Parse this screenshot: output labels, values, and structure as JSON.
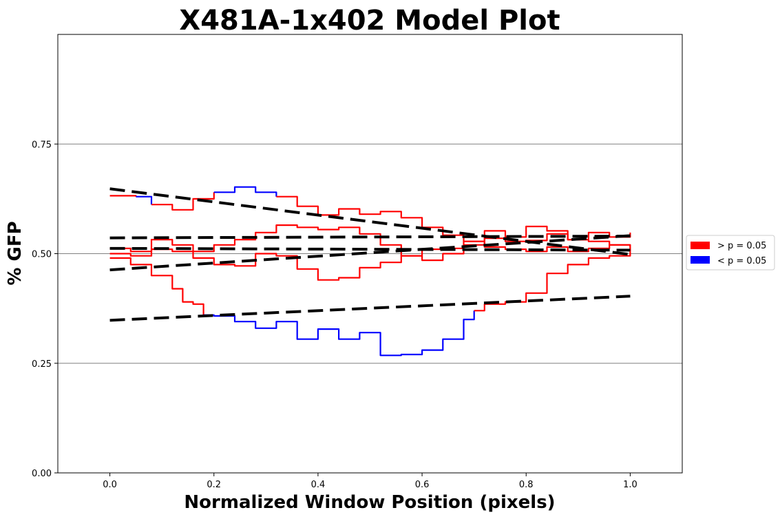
{
  "chart_data": {
    "type": "line",
    "title": "X481A-1x402 Model Plot",
    "xlabel": "Normalized Window Position (pixels)",
    "ylabel": "% GFP",
    "xlim": [
      -0.1,
      1.1
    ],
    "ylim": [
      0.0,
      1.0
    ],
    "xticks": [
      0.0,
      0.2,
      0.4,
      0.6,
      0.8,
      1.0
    ],
    "xtick_labels": [
      "0.0",
      "0.2",
      "0.4",
      "0.6",
      "0.8",
      "1.0"
    ],
    "yticks": [
      0.0,
      0.25,
      0.5,
      0.75
    ],
    "ytick_labels": [
      "0.00",
      "0.25",
      "0.50",
      "0.75"
    ],
    "horizontal_gridlines": [
      0.25,
      0.5,
      0.75
    ],
    "grid": "horizontal only",
    "legend": {
      "placement": "outside right",
      "entries": [
        {
          "label": "> p = 0.05",
          "color": "#ff0000"
        },
        {
          "label": "< p = 0.05",
          "color": "#0000ff"
        }
      ]
    },
    "colors": {
      "not_significant": "#ff0000",
      "significant": "#0000ff",
      "fit": "#000000",
      "grid": "#808080"
    },
    "series": [
      {
        "points": [
          [
            0.0,
            0.632
          ],
          [
            0.05,
            0.63
          ],
          [
            0.08,
            0.612
          ],
          [
            0.12,
            0.6
          ],
          [
            0.16,
            0.625
          ],
          [
            0.2,
            0.64
          ],
          [
            0.24,
            0.652
          ],
          [
            0.28,
            0.64
          ],
          [
            0.32,
            0.63
          ],
          [
            0.36,
            0.608
          ],
          [
            0.4,
            0.588
          ],
          [
            0.44,
            0.602
          ],
          [
            0.48,
            0.59
          ],
          [
            0.52,
            0.596
          ],
          [
            0.56,
            0.582
          ],
          [
            0.6,
            0.56
          ],
          [
            0.64,
            0.542
          ],
          [
            0.68,
            0.528
          ],
          [
            0.72,
            0.552
          ],
          [
            0.76,
            0.538
          ],
          [
            0.8,
            0.562
          ],
          [
            0.84,
            0.552
          ],
          [
            0.88,
            0.532
          ],
          [
            0.92,
            0.548
          ],
          [
            0.96,
            0.538
          ],
          [
            1.0,
            0.548
          ]
        ],
        "significant_x": [
          [
            0.06,
            0.07
          ],
          [
            0.2,
            0.33
          ]
        ],
        "fit": [
          0.648,
          0.498
        ]
      },
      {
        "points": [
          [
            0.0,
            0.512
          ],
          [
            0.04,
            0.505
          ],
          [
            0.08,
            0.532
          ],
          [
            0.12,
            0.52
          ],
          [
            0.16,
            0.505
          ],
          [
            0.2,
            0.52
          ],
          [
            0.24,
            0.532
          ],
          [
            0.28,
            0.548
          ],
          [
            0.32,
            0.565
          ],
          [
            0.36,
            0.56
          ],
          [
            0.4,
            0.555
          ],
          [
            0.44,
            0.56
          ],
          [
            0.48,
            0.545
          ],
          [
            0.52,
            0.52
          ],
          [
            0.56,
            0.495
          ],
          [
            0.6,
            0.485
          ],
          [
            0.64,
            0.5
          ],
          [
            0.68,
            0.52
          ],
          [
            0.72,
            0.535
          ],
          [
            0.76,
            0.528
          ],
          [
            0.8,
            0.53
          ],
          [
            0.84,
            0.545
          ],
          [
            0.88,
            0.532
          ],
          [
            0.92,
            0.528
          ],
          [
            0.96,
            0.52
          ],
          [
            1.0,
            0.515
          ]
        ],
        "significant_x": [],
        "fit": [
          0.536,
          0.54
        ]
      },
      {
        "points": [
          [
            0.0,
            0.5
          ],
          [
            0.04,
            0.495
          ],
          [
            0.08,
            0.51
          ],
          [
            0.12,
            0.505
          ],
          [
            0.16,
            0.49
          ],
          [
            0.2,
            0.475
          ],
          [
            0.24,
            0.472
          ],
          [
            0.28,
            0.5
          ],
          [
            0.32,
            0.495
          ],
          [
            0.36,
            0.465
          ],
          [
            0.4,
            0.44
          ],
          [
            0.44,
            0.445
          ],
          [
            0.48,
            0.468
          ],
          [
            0.52,
            0.48
          ],
          [
            0.56,
            0.495
          ],
          [
            0.6,
            0.51
          ],
          [
            0.64,
            0.512
          ],
          [
            0.68,
            0.528
          ],
          [
            0.72,
            0.515
          ],
          [
            0.76,
            0.51
          ],
          [
            0.8,
            0.505
          ],
          [
            0.84,
            0.515
          ],
          [
            0.88,
            0.505
          ],
          [
            0.92,
            0.512
          ],
          [
            0.96,
            0.52
          ],
          [
            1.0,
            0.505
          ]
        ],
        "significant_x": [],
        "fit": [
          0.463,
          0.541
        ]
      },
      {
        "points": [
          [
            0.0,
            0.49
          ],
          [
            0.04,
            0.475
          ],
          [
            0.08,
            0.45
          ],
          [
            0.12,
            0.42
          ],
          [
            0.14,
            0.39
          ],
          [
            0.16,
            0.385
          ],
          [
            0.18,
            0.36
          ],
          [
            0.2,
            0.358
          ],
          [
            0.24,
            0.345
          ],
          [
            0.28,
            0.33
          ],
          [
            0.32,
            0.345
          ],
          [
            0.36,
            0.305
          ],
          [
            0.4,
            0.328
          ],
          [
            0.44,
            0.305
          ],
          [
            0.48,
            0.32
          ],
          [
            0.52,
            0.268
          ],
          [
            0.56,
            0.27
          ],
          [
            0.6,
            0.28
          ],
          [
            0.64,
            0.305
          ],
          [
            0.68,
            0.35
          ],
          [
            0.7,
            0.37
          ],
          [
            0.72,
            0.385
          ],
          [
            0.76,
            0.39
          ],
          [
            0.8,
            0.41
          ],
          [
            0.84,
            0.455
          ],
          [
            0.88,
            0.475
          ],
          [
            0.92,
            0.49
          ],
          [
            0.96,
            0.495
          ],
          [
            1.0,
            0.505
          ]
        ],
        "significant_x": [
          [
            0.18,
            0.7
          ]
        ],
        "fit": [
          0.348,
          0.403
        ]
      }
    ],
    "extra_fit_lines": [
      [
        0.512,
        0.508
      ]
    ]
  }
}
